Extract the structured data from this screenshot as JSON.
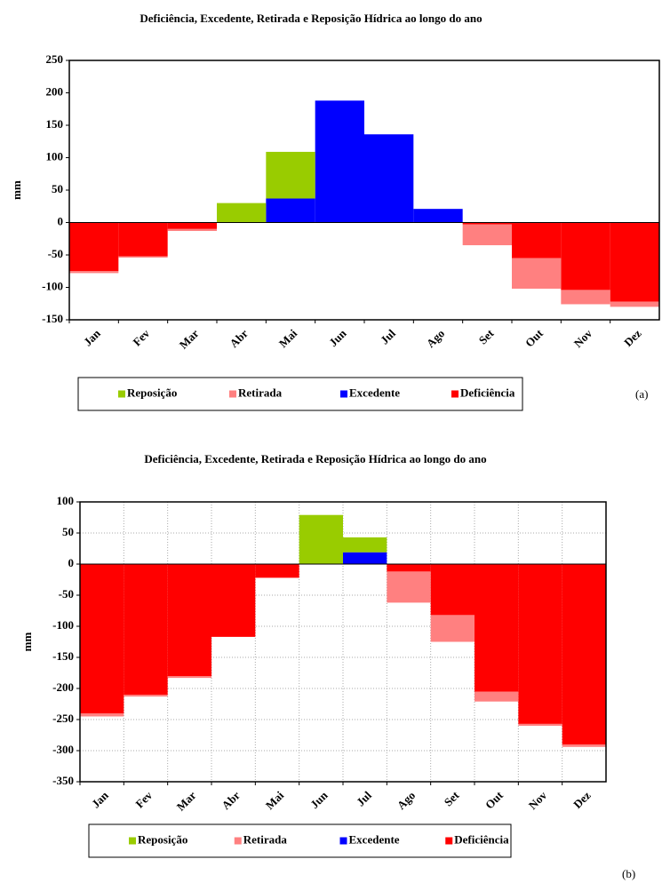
{
  "chart_data": [
    {
      "type": "bar",
      "stacked": true,
      "title": "Deficiência, Excedente, Retirada e Reposição Hídrica ao longo do ano",
      "ylabel": "mm",
      "panel_label": "(a)",
      "categories": [
        "Jan",
        "Fev",
        "Mar",
        "Abr",
        "Mai",
        "Jun",
        "Jul",
        "Ago",
        "Set",
        "Out",
        "Nov",
        "Dez"
      ],
      "series": [
        {
          "name": "Reposição",
          "color": "#99cc00",
          "values": [
            null,
            null,
            null,
            30,
            72,
            null,
            null,
            null,
            null,
            null,
            null,
            null
          ]
        },
        {
          "name": "Retirada",
          "color": "#ff8080",
          "values": [
            -3,
            -2,
            -3,
            null,
            null,
            null,
            null,
            null,
            -32,
            -47,
            -22,
            -8
          ]
        },
        {
          "name": "Excedente",
          "color": "#0000ff",
          "values": [
            null,
            null,
            null,
            null,
            37,
            188,
            136,
            21,
            null,
            null,
            null,
            null
          ]
        },
        {
          "name": "Deficiência",
          "color": "#ff0000",
          "values": [
            -75,
            -52,
            -10,
            null,
            null,
            null,
            null,
            null,
            -3,
            -55,
            -104,
            -122
          ]
        }
      ],
      "ylim": [
        -150,
        250
      ],
      "yticks": [
        -150,
        -100,
        -50,
        0,
        50,
        100,
        150,
        200,
        250
      ],
      "grid": false
    },
    {
      "type": "bar",
      "stacked": true,
      "title": "Deficiência, Excedente, Retirada e Reposição Hídrica ao longo do ano",
      "ylabel": "mm",
      "panel_label": "(b)",
      "categories": [
        "Jan",
        "Fev",
        "Mar",
        "Abr",
        "Mai",
        "Jun",
        "Jul",
        "Ago",
        "Set",
        "Out",
        "Nov",
        "Dez"
      ],
      "series": [
        {
          "name": "Reposição",
          "color": "#99cc00",
          "values": [
            null,
            null,
            null,
            null,
            null,
            79,
            24,
            null,
            null,
            null,
            null,
            null
          ]
        },
        {
          "name": "Retirada",
          "color": "#ff8080",
          "values": [
            -5,
            -3,
            -3,
            null,
            null,
            null,
            null,
            -50,
            -43,
            -16,
            -3,
            -4
          ]
        },
        {
          "name": "Excedente",
          "color": "#0000ff",
          "values": [
            null,
            null,
            null,
            null,
            null,
            null,
            19,
            null,
            null,
            null,
            null,
            null
          ]
        },
        {
          "name": "Deficiência",
          "color": "#ff0000",
          "values": [
            -240,
            -210,
            -180,
            -117,
            -22,
            null,
            null,
            -12,
            -82,
            -205,
            -257,
            -290
          ]
        }
      ],
      "ylim": [
        -350,
        100
      ],
      "yticks": [
        -350,
        -300,
        -250,
        -200,
        -150,
        -100,
        -50,
        0,
        50,
        100
      ],
      "grid": true
    }
  ]
}
